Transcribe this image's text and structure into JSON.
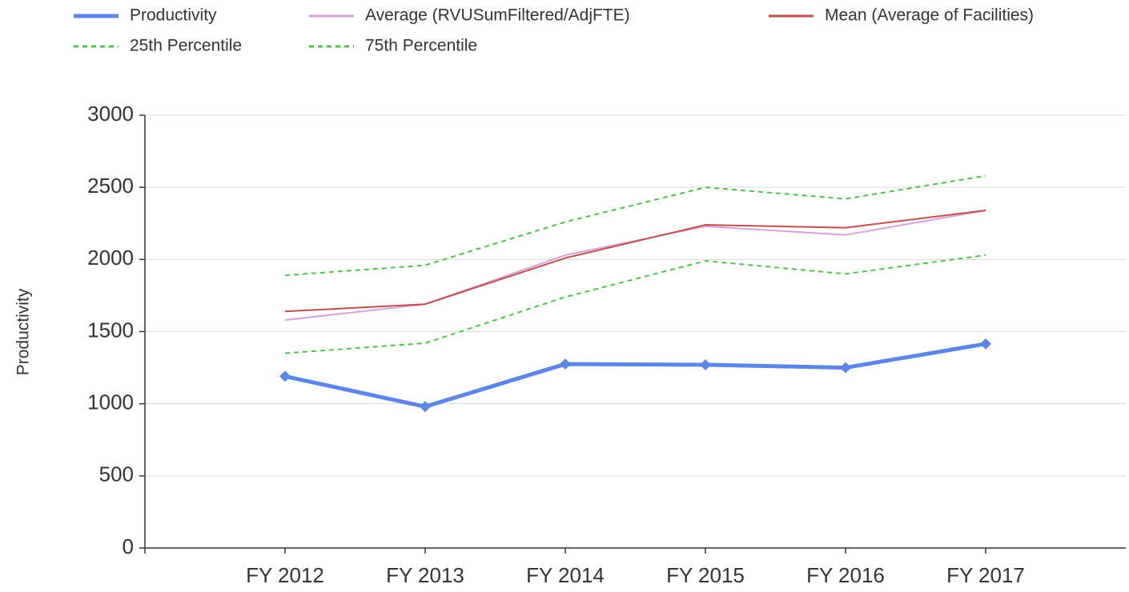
{
  "chart_data": {
    "type": "line",
    "y_label": "Productivity",
    "categories": [
      "FY 2012",
      "FY 2013",
      "FY 2014",
      "FY 2015",
      "FY 2016",
      "FY 2017"
    ],
    "series": [
      {
        "name": "Productivity",
        "color": "#5b86e5",
        "line_style": "solid",
        "marker": "diamond",
        "values": [
          1190,
          980,
          1275,
          1270,
          1250,
          1415
        ]
      },
      {
        "name": "Average (RVUSumFiltered/AdjFTE)",
        "color": "#d8a0d8",
        "line_style": "solid",
        "values": [
          1580,
          1690,
          2030,
          2230,
          2170,
          2340
        ]
      },
      {
        "name": "Mean (Average of Facilities)",
        "color": "#c0504d",
        "line_style": "solid",
        "values": [
          1640,
          1690,
          2010,
          2240,
          2220,
          2340
        ]
      },
      {
        "name": "25th Percentile",
        "color": "#4cc24c",
        "line_style": "dashed",
        "values": [
          1350,
          1420,
          1740,
          1990,
          1900,
          2030
        ]
      },
      {
        "name": "75th Percentile",
        "color": "#4cc24c",
        "line_style": "dashed",
        "values": [
          1890,
          1960,
          2260,
          2500,
          2420,
          2580
        ]
      }
    ],
    "ylim": [
      0,
      3000
    ],
    "yticks": [
      0,
      500,
      1000,
      1500,
      2000,
      2500,
      3000
    ],
    "grid": true,
    "legend": "top-left"
  }
}
